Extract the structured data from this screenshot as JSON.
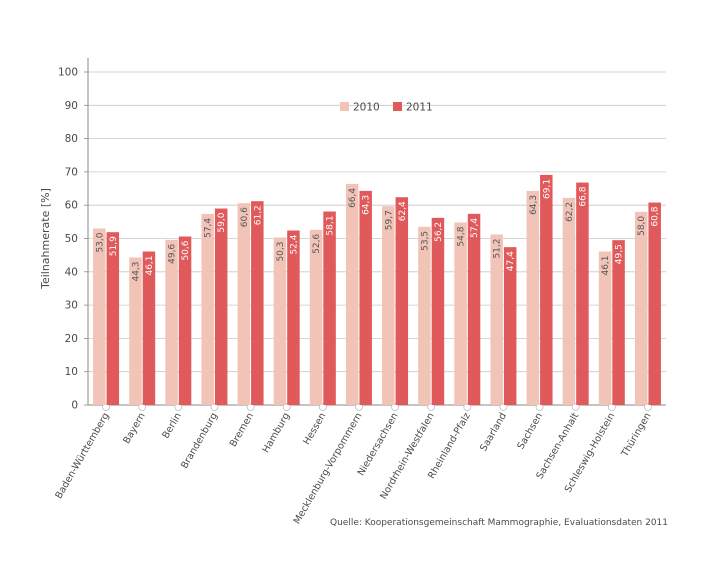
{
  "chart_data": {
    "type": "bar",
    "ylabel": "Teilnahmerate [%]",
    "ylim": [
      0,
      100
    ],
    "yticks": [
      0,
      10,
      20,
      30,
      40,
      50,
      60,
      70,
      80,
      90,
      100
    ],
    "grid": true,
    "legend_position": "top-center",
    "categories": [
      "Baden-Württemberg",
      "Bayern",
      "Berlin",
      "Brandenburg",
      "Bremen",
      "Hamburg",
      "Hessen",
      "Mecklenburg-Vorpommern",
      "Niedersachsen",
      "Nordrhein-Westfalen",
      "Rheinland-Pfalz",
      "Saarland",
      "Sachsen",
      "Sachsen-Anhalt",
      "Schleswig-Holstein",
      "Thüringen"
    ],
    "series": [
      {
        "name": "2010",
        "color": "#f2c4b8",
        "values": [
          53.0,
          44.3,
          49.6,
          57.4,
          60.6,
          50.3,
          52.6,
          66.4,
          59.7,
          53.5,
          54.8,
          51.2,
          64.3,
          62.2,
          46.1,
          58.0
        ],
        "labels": [
          "53,0",
          "44,3",
          "49,6",
          "57,4",
          "60,6",
          "50,3",
          "52,6",
          "66,4",
          "59,7",
          "53,5",
          "54,8",
          "51,2",
          "64,3",
          "62,2",
          "46,1",
          "58,0"
        ]
      },
      {
        "name": "2011",
        "color": "#e05a5c",
        "values": [
          51.9,
          46.1,
          50.6,
          59.0,
          61.2,
          52.4,
          58.1,
          64.3,
          62.4,
          56.2,
          57.4,
          47.4,
          69.1,
          66.8,
          49.5,
          60.8
        ],
        "labels": [
          "51,9",
          "46,1",
          "50,6",
          "59,0",
          "61,2",
          "52,4",
          "58,1",
          "64,3",
          "62,4",
          "56,2",
          "57,4",
          "47,4",
          "69,1",
          "66,8",
          "49,5",
          "60,8"
        ]
      }
    ]
  },
  "source": "Quelle: Kooperationsgemeinschaft Mammographie, Evaluationsdaten 2011",
  "colors": {
    "grid": "#c8c8c8",
    "axis": "#8a8a8a"
  }
}
